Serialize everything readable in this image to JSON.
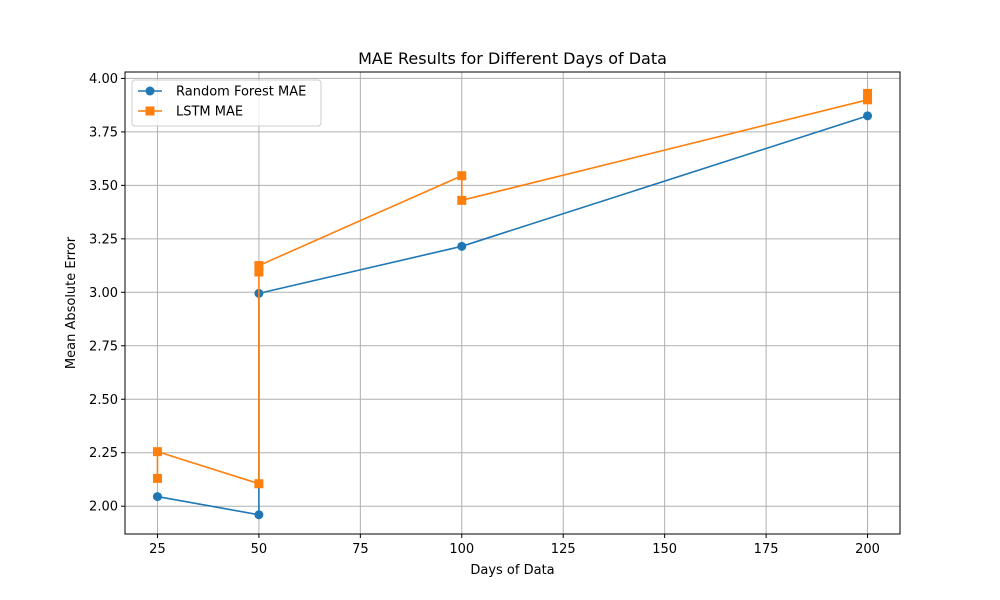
{
  "chart_data": {
    "type": "line",
    "title": "MAE Results for Different Days of Data",
    "xlabel": "Days of Data",
    "ylabel": "Mean Absolute Error",
    "xlim": [
      17,
      208
    ],
    "ylim": [
      1.87,
      4.03
    ],
    "xticks": [
      25,
      50,
      75,
      100,
      125,
      150,
      175,
      200
    ],
    "yticks": [
      2.0,
      2.25,
      2.5,
      2.75,
      3.0,
      3.25,
      3.5,
      3.75,
      4.0
    ],
    "xtick_labels": [
      "25",
      "50",
      "75",
      "100",
      "125",
      "150",
      "175",
      "200"
    ],
    "ytick_labels": [
      "2.00",
      "2.25",
      "2.50",
      "2.75",
      "3.00",
      "3.25",
      "3.50",
      "3.75",
      "4.00"
    ],
    "grid": true,
    "legend_position": "upper-left",
    "series": [
      {
        "name": "Random Forest MAE",
        "color": "#1f77b4",
        "marker": "circle",
        "x": [
          25,
          50,
          50,
          100,
          200
        ],
        "y": [
          2.045,
          1.96,
          2.995,
          3.215,
          3.825
        ]
      },
      {
        "name": "LSTM MAE",
        "color": "#ff7f0e",
        "marker": "square",
        "x": [
          25,
          25,
          50,
          50,
          50,
          100,
          100,
          200,
          200
        ],
        "y": [
          2.13,
          2.255,
          2.105,
          3.095,
          3.125,
          3.545,
          3.43,
          3.9,
          3.93
        ]
      }
    ]
  }
}
